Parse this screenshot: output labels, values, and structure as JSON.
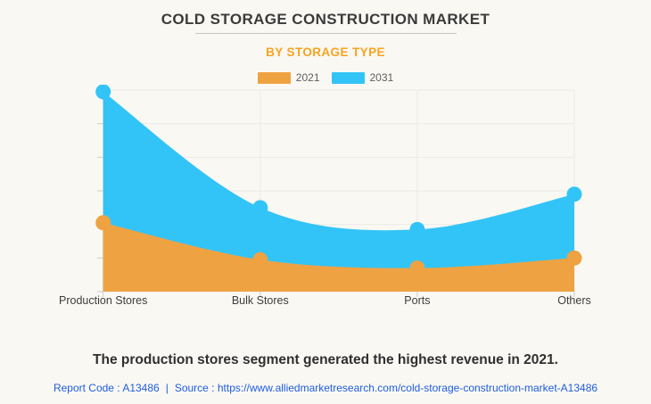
{
  "header": {
    "title": "COLD STORAGE CONSTRUCTION MARKET",
    "subtitle": "BY STORAGE TYPE"
  },
  "legend": {
    "items": [
      {
        "label": "2021",
        "color": "#efa242"
      },
      {
        "label": "2031",
        "color": "#33c4f7"
      }
    ]
  },
  "chart_data": {
    "type": "area",
    "categories": [
      "Production Stores",
      "Bulk Stores",
      "Ports",
      "Others"
    ],
    "series": [
      {
        "name": "2031",
        "color": "#33c4f7",
        "values": [
          5.95,
          2.5,
          1.85,
          2.9
        ]
      },
      {
        "name": "2021",
        "color": "#efa242",
        "values": [
          2.05,
          0.95,
          0.7,
          1.0
        ]
      }
    ],
    "ylim": [
      0,
      6
    ],
    "gridline_step": 1,
    "grid": true,
    "legend_position": "top",
    "value_note": "relative gridline units; chart shows no numeric y-axis labels"
  },
  "caption": "The production stores segment generated the highest revenue in 2021.",
  "footer": {
    "report_code": "Report Code : A13486",
    "separator": "|",
    "source_label": "Source :",
    "source_url": "https://www.alliedmarketresearch.com/cold-storage-construction-market-A13486"
  },
  "colors": {
    "background": "#faf8f3",
    "grid": "#eceae5",
    "axis": "#dcdad5",
    "tick": "#cfcdc8",
    "subtitle": "#f7a41f",
    "footer_link": "#1d5de0"
  }
}
